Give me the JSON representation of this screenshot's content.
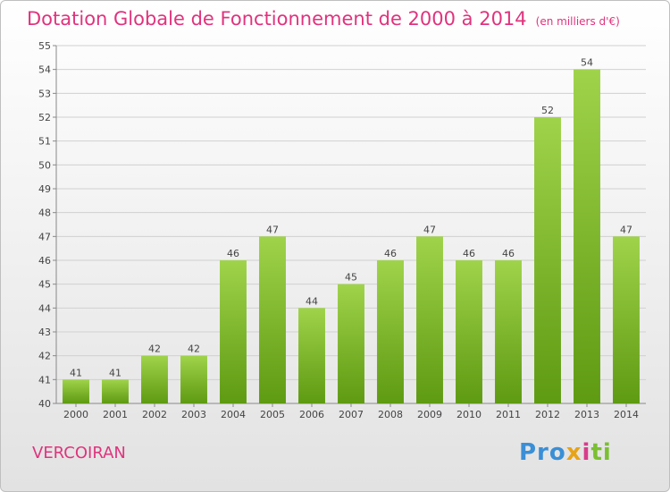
{
  "header": {
    "title": "Dotation Globale de Fonctionnement de 2000 à 2014",
    "subtitle": "(en milliers d'€)"
  },
  "commune": "VERCOIRAN",
  "brand": {
    "p1": "Pro",
    "p2": "x",
    "p3": "i",
    "p4": "ti"
  },
  "colors": {
    "title": "#e0337d",
    "bar_top": "#9fd34a",
    "bar_bottom": "#5e9a12",
    "grid": "#d0d0d0"
  },
  "chart_data": {
    "type": "bar",
    "title": "Dotation Globale de Fonctionnement de 2000 à 2014",
    "subtitle": "(en milliers d'€)",
    "xlabel": "",
    "ylabel": "",
    "ylim": [
      40,
      55
    ],
    "yticks": [
      40,
      41,
      42,
      43,
      44,
      45,
      46,
      47,
      48,
      49,
      50,
      51,
      52,
      53,
      54,
      55
    ],
    "grid": true,
    "categories": [
      "2000",
      "2001",
      "2002",
      "2003",
      "2004",
      "2005",
      "2006",
      "2007",
      "2008",
      "2009",
      "2010",
      "2011",
      "2012",
      "2013",
      "2014"
    ],
    "values": [
      41,
      41,
      42,
      42,
      46,
      47,
      44,
      45,
      46,
      47,
      46,
      46,
      52,
      54,
      47
    ]
  }
}
